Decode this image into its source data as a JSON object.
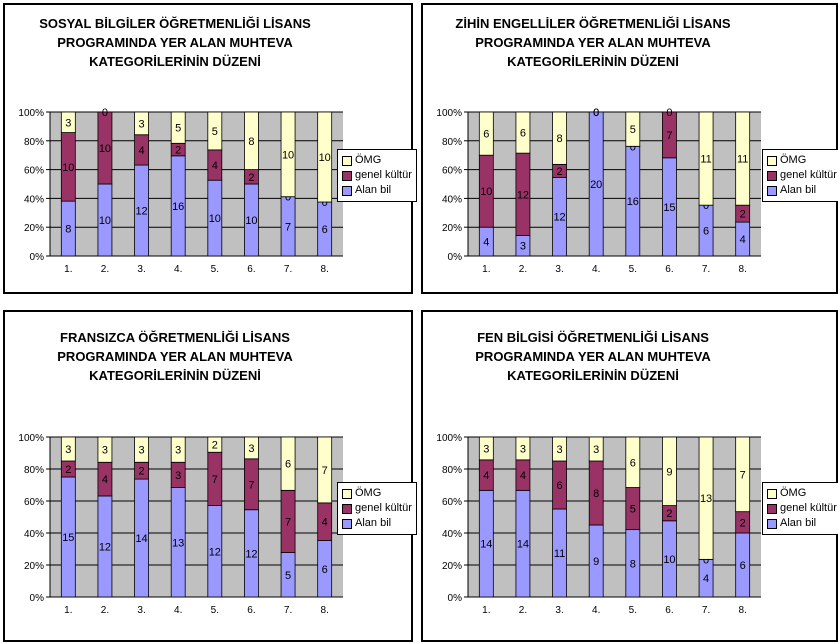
{
  "colors": {
    "alan": "#9999ff",
    "genel": "#993366",
    "omg": "#ffffcc",
    "plot_bg": "#c0c0c0"
  },
  "chart_data": [
    {
      "type": "bar",
      "stacked": "percent",
      "title_lines": [
        "SOSYAL BİLGİLER ÖĞRETMENLİĞİ LİSANS",
        "PROGRAMINDA YER ALAN MUHTEVA",
        "KATEGORİLERİNİN DÜZENİ"
      ],
      "categories": [
        "1.",
        "2.",
        "3.",
        "4.",
        "5.",
        "6.",
        "7.",
        "8."
      ],
      "y_ticks": [
        "0%",
        "20%",
        "40%",
        "60%",
        "80%",
        "100%"
      ],
      "ylim": [
        0,
        100
      ],
      "legend_position": "right",
      "series": [
        {
          "name": "Alan bil",
          "values": [
            8,
            10,
            12,
            16,
            10,
            10,
            7,
            6
          ]
        },
        {
          "name": "genel kültür",
          "values": [
            10,
            10,
            4,
            2,
            4,
            2,
            0,
            0
          ]
        },
        {
          "name": "ÖMG",
          "values": [
            3,
            0,
            3,
            5,
            5,
            8,
            10,
            10
          ]
        }
      ]
    },
    {
      "type": "bar",
      "stacked": "percent",
      "title_lines": [
        "ZİHİN ENGELLİLER ÖĞRETMENLİĞİ LİSANS",
        "PROGRAMINDA YER ALAN MUHTEVA",
        "KATEGORİLERİNİN DÜZENİ"
      ],
      "categories": [
        "1.",
        "2.",
        "3.",
        "4.",
        "5.",
        "6.",
        "7.",
        "8."
      ],
      "y_ticks": [
        "0%",
        "20%",
        "40%",
        "60%",
        "80%",
        "100%"
      ],
      "ylim": [
        0,
        100
      ],
      "legend_position": "right",
      "series": [
        {
          "name": "Alan bil",
          "values": [
            4,
            3,
            12,
            20,
            16,
            15,
            6,
            4
          ]
        },
        {
          "name": "genel kültür",
          "values": [
            10,
            12,
            2,
            0,
            0,
            7,
            0,
            2
          ]
        },
        {
          "name": "ÖMG",
          "values": [
            6,
            6,
            8,
            0,
            5,
            0,
            11,
            11
          ]
        }
      ]
    },
    {
      "type": "bar",
      "stacked": "percent",
      "title_lines": [
        "FRANSIZCA ÖĞRETMENLİĞİ LİSANS",
        "PROGRAMINDA YER ALAN MUHTEVA",
        "KATEGORİLERİNİN DÜZENİ"
      ],
      "categories": [
        "1.",
        "2.",
        "3.",
        "4.",
        "5.",
        "6.",
        "7.",
        "8."
      ],
      "y_ticks": [
        "0%",
        "20%",
        "40%",
        "60%",
        "80%",
        "100%"
      ],
      "ylim": [
        0,
        100
      ],
      "legend_position": "right",
      "series": [
        {
          "name": "Alan bil",
          "values": [
            15,
            12,
            14,
            13,
            12,
            12,
            5,
            6
          ]
        },
        {
          "name": "genel kültür",
          "values": [
            2,
            4,
            2,
            3,
            7,
            7,
            7,
            4
          ]
        },
        {
          "name": "ÖMG",
          "values": [
            3,
            3,
            3,
            3,
            2,
            3,
            6,
            7
          ]
        }
      ]
    },
    {
      "type": "bar",
      "stacked": "percent",
      "title_lines": [
        "FEN BİLGİSİ ÖĞRETMENLİĞİ LİSANS",
        "PROGRAMINDA YER ALAN MUHTEVA",
        "KATEGORİLERİNİN DÜZENİ"
      ],
      "categories": [
        "1.",
        "2.",
        "3.",
        "4.",
        "5.",
        "6.",
        "7.",
        "8."
      ],
      "y_ticks": [
        "0%",
        "20%",
        "40%",
        "60%",
        "80%",
        "100%"
      ],
      "ylim": [
        0,
        100
      ],
      "legend_position": "right",
      "series": [
        {
          "name": "Alan bil",
          "values": [
            14,
            14,
            11,
            9,
            8,
            10,
            4,
            6
          ]
        },
        {
          "name": "genel kültür",
          "values": [
            4,
            4,
            6,
            8,
            5,
            2,
            0,
            2
          ]
        },
        {
          "name": "ÖMG",
          "values": [
            3,
            3,
            3,
            3,
            6,
            9,
            13,
            7
          ]
        }
      ]
    }
  ]
}
